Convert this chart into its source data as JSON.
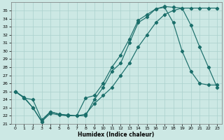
{
  "xlabel": "Humidex (Indice chaleur)",
  "background_color": "#cce8e4",
  "grid_color": "#aad0cc",
  "line_color": "#1a6e6a",
  "xlim": [
    -0.5,
    23.5
  ],
  "ylim": [
    21,
    36
  ],
  "yticks": [
    21,
    22,
    23,
    24,
    25,
    26,
    27,
    28,
    29,
    30,
    31,
    32,
    33,
    34,
    35
  ],
  "xticks": [
    0,
    1,
    2,
    3,
    4,
    5,
    6,
    7,
    8,
    9,
    10,
    11,
    12,
    13,
    14,
    15,
    16,
    17,
    18,
    19,
    20,
    21,
    22,
    23
  ],
  "line1_x": [
    0,
    1,
    2,
    3,
    4,
    5,
    6,
    7,
    8,
    9,
    10,
    11,
    12,
    13,
    14,
    15,
    16,
    17,
    18,
    19,
    20,
    21,
    22,
    23
  ],
  "line1_y": [
    25.0,
    24.2,
    24.0,
    21.5,
    22.5,
    22.2,
    22.0,
    22.0,
    22.0,
    24.0,
    25.5,
    27.5,
    28.5,
    31.0,
    33.5,
    34.2,
    35.2,
    35.4,
    33.5,
    30.0,
    27.5,
    26.0,
    25.8,
    25.8
  ],
  "line2_x": [
    0,
    1,
    2,
    3,
    4,
    5,
    6,
    7,
    8,
    9,
    10,
    11,
    12,
    13,
    14,
    15,
    16,
    17,
    18,
    19,
    20,
    21,
    22,
    23
  ],
  "line2_y": [
    25.0,
    24.2,
    23.0,
    21.3,
    22.5,
    22.2,
    22.1,
    22.0,
    24.2,
    24.5,
    26.0,
    28.0,
    29.5,
    31.5,
    33.8,
    34.5,
    35.2,
    35.5,
    35.4,
    35.3,
    33.2,
    30.5,
    28.0,
    25.5
  ],
  "line3_x": [
    0,
    1,
    2,
    3,
    4,
    5,
    6,
    7,
    8,
    9,
    10,
    11,
    12,
    13,
    14,
    15,
    16,
    17,
    18,
    19,
    20,
    21,
    22,
    23
  ],
  "line3_y": [
    25.0,
    24.3,
    23.0,
    21.3,
    22.3,
    22.1,
    22.0,
    22.0,
    22.2,
    23.5,
    24.5,
    25.5,
    27.0,
    28.5,
    30.5,
    32.0,
    33.5,
    34.5,
    35.0,
    35.3,
    35.3,
    35.3,
    35.3,
    35.3
  ]
}
